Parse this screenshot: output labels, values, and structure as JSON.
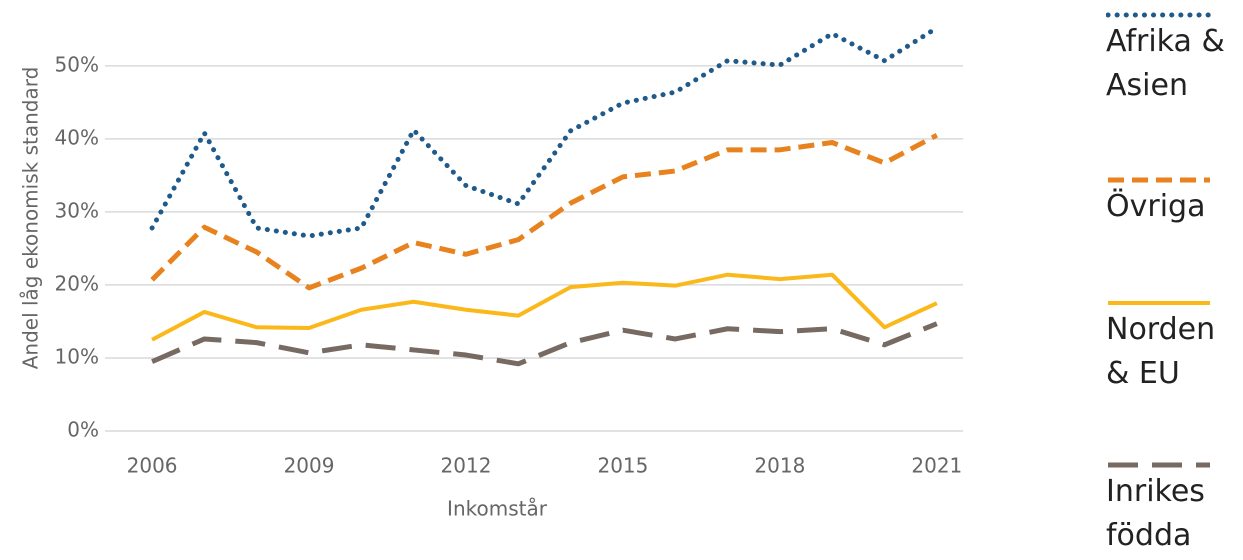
{
  "chart_data": {
    "type": "line",
    "x_label": "Inkomstår",
    "y_label": "Andel låg ekonomisk standard",
    "x": [
      2006,
      2007,
      2008,
      2009,
      2010,
      2011,
      2012,
      2013,
      2014,
      2015,
      2016,
      2017,
      2018,
      2019,
      2020,
      2021
    ],
    "series": [
      {
        "name": "Afrika & Asien",
        "color": "#1f5a8a",
        "style": "dotted",
        "values": [
          27.8,
          40.8,
          27.8,
          26.7,
          27.8,
          41.2,
          33.6,
          31.1,
          41.1,
          44.9,
          46.4,
          50.7,
          50.1,
          54.4,
          50.7,
          55.2
        ]
      },
      {
        "name": "Övriga",
        "color": "#e8821e",
        "style": "dashed",
        "values": [
          20.7,
          27.9,
          24.5,
          19.6,
          22.3,
          25.8,
          24.2,
          26.2,
          31.2,
          34.8,
          35.6,
          38.5,
          38.5,
          39.5,
          36.7,
          40.5
        ]
      },
      {
        "name": "Norden & EU",
        "color": "#fbb81a",
        "style": "solid",
        "values": [
          12.5,
          16.3,
          14.2,
          14.1,
          16.6,
          17.7,
          16.6,
          15.8,
          19.7,
          20.3,
          19.9,
          21.4,
          20.8,
          21.4,
          14.2,
          17.5
        ]
      },
      {
        "name": "Inrikes födda",
        "color": "#766a62",
        "style": "longdash",
        "values": [
          9.5,
          12.6,
          12.1,
          10.7,
          11.8,
          11.1,
          10.4,
          9.2,
          12.1,
          13.8,
          12.6,
          14.0,
          13.6,
          14.0,
          11.8,
          14.7
        ]
      }
    ],
    "xlim": [
      2005.1,
      2021.5
    ],
    "xticks": [
      2006,
      2009,
      2012,
      2015,
      2018,
      2021
    ],
    "ylim": [
      0,
      56
    ],
    "yticks": [
      {
        "value": 0,
        "label": "0%"
      },
      {
        "value": 10,
        "label": "10%"
      },
      {
        "value": 20,
        "label": "20%"
      },
      {
        "value": 30,
        "label": "30%"
      },
      {
        "value": 40,
        "label": "40%"
      },
      {
        "value": 50,
        "label": "50%"
      }
    ],
    "grid": true,
    "legend": "right"
  }
}
